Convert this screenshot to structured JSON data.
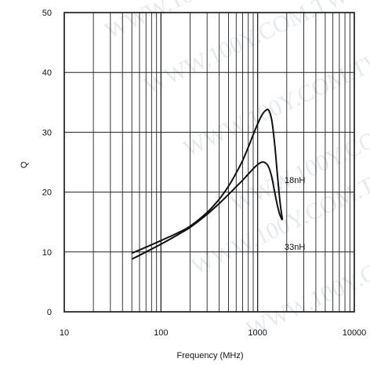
{
  "chart_data": {
    "type": "line",
    "xlabel": "Frequency (MHz)",
    "ylabel": "Q",
    "xscale": "log",
    "xlim": [
      10,
      10000
    ],
    "ylim": [
      0,
      50
    ],
    "x_ticks": [
      "10",
      "100",
      "1000",
      "10000"
    ],
    "y_ticks": [
      "0",
      "10",
      "20",
      "30",
      "40",
      "50"
    ],
    "grid": true,
    "series": [
      {
        "name": "18nH",
        "x": [
          50,
          70,
          100,
          150,
          200,
          300,
          400,
          500,
          600,
          700,
          800,
          900,
          1000,
          1100,
          1200,
          1300,
          1400,
          1500,
          1600,
          1700,
          1800
        ],
        "y": [
          9.8,
          10.8,
          11.9,
          13.2,
          14.3,
          16.6,
          18.8,
          21.0,
          23.2,
          25.3,
          27.5,
          29.6,
          31.4,
          32.8,
          33.6,
          33.7,
          32.0,
          28.0,
          23.0,
          18.5,
          15.5
        ]
      },
      {
        "name": "33nH",
        "x": [
          50,
          70,
          100,
          150,
          200,
          300,
          400,
          500,
          600,
          700,
          800,
          900,
          1000,
          1100,
          1200,
          1300,
          1400,
          1500,
          1600,
          1700,
          1800
        ],
        "y": [
          8.8,
          10.0,
          11.3,
          12.9,
          14.1,
          16.3,
          18.1,
          19.6,
          20.9,
          22.0,
          23.0,
          23.9,
          24.6,
          25.0,
          24.9,
          24.2,
          22.5,
          20.0,
          17.8,
          16.2,
          15.3
        ]
      }
    ],
    "series_label_anchors": [
      {
        "name": "18nH",
        "x": 1900,
        "y": 21.5
      },
      {
        "name": "33nH",
        "x": 1900,
        "y": 10.4
      }
    ]
  },
  "watermark": {
    "text": [
      "WWW.100Y.COM.TW",
      "WWW.100Y.COM.TW",
      "WWW.100Y.COM.TW",
      "WWW.100Y.COM.TW",
      "WWW.100Y.COM.TW",
      "WWW.100Y.COM.TW"
    ]
  }
}
